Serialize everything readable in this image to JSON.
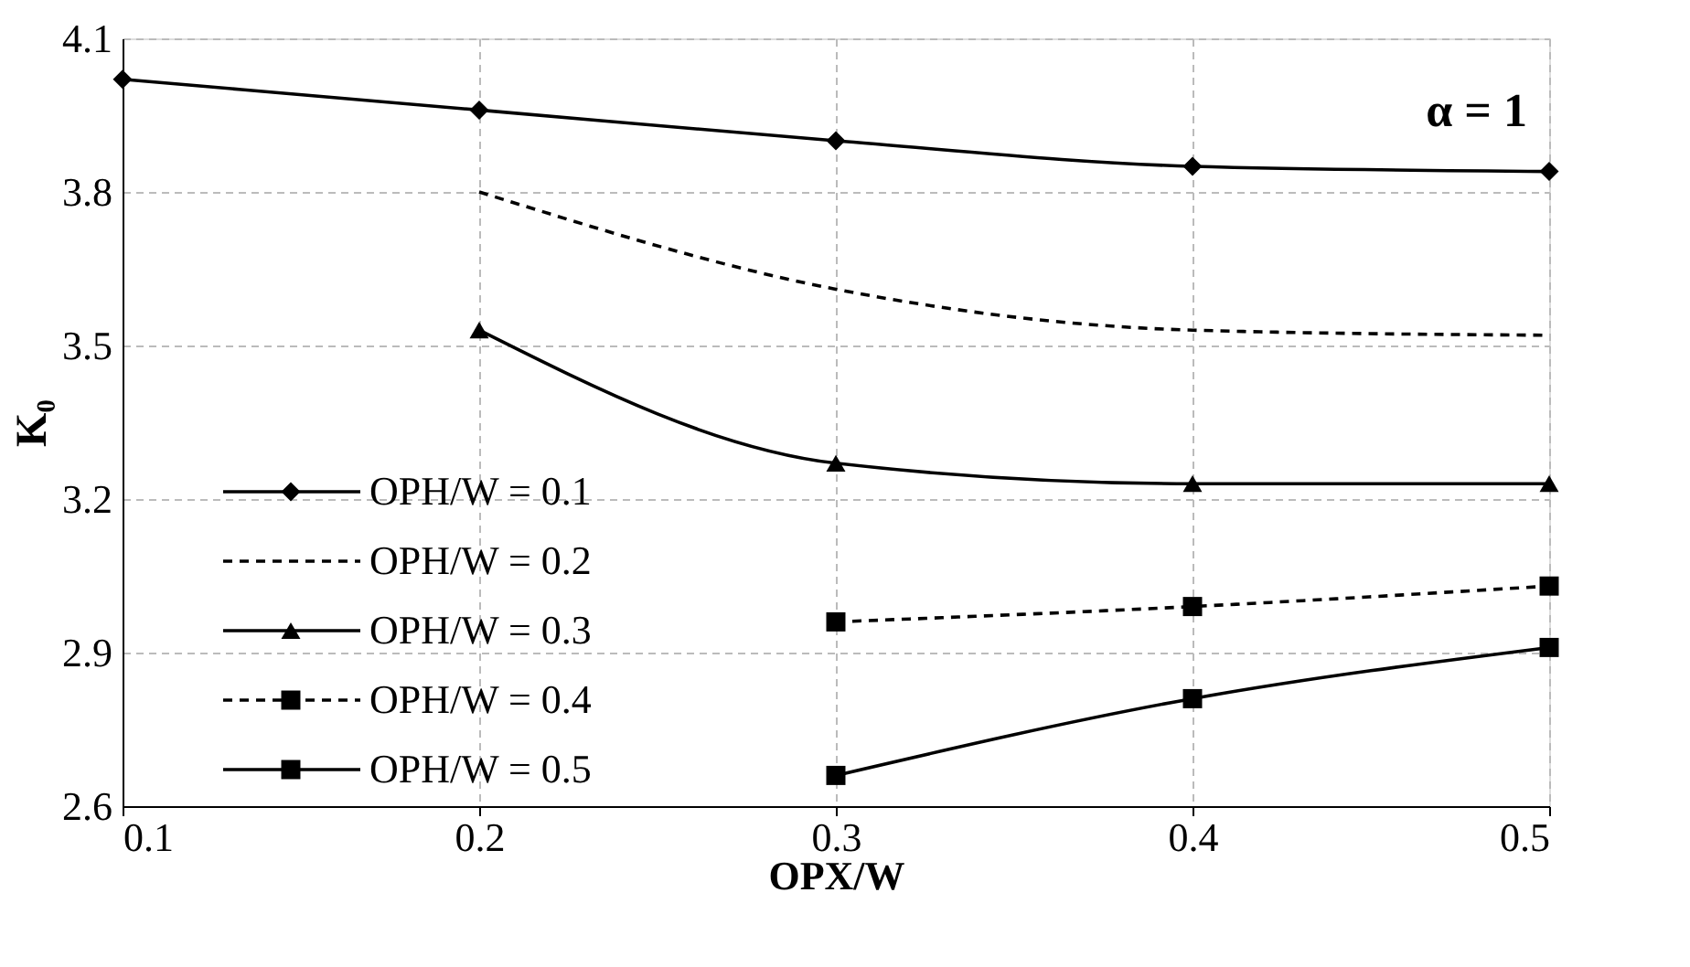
{
  "chart_data": {
    "type": "line",
    "xlabel": "OPX/W",
    "ylabel": "K₀",
    "annotations": [
      "α = 1"
    ],
    "xlim": [
      0.1,
      0.5
    ],
    "xticks": [
      0.1,
      0.2,
      0.3,
      0.4,
      0.5
    ],
    "ylim": [
      2.6,
      4.1
    ],
    "yticks": [
      2.6,
      2.9,
      3.2,
      3.5,
      3.8,
      4.1
    ],
    "grid": true,
    "legend": "bottom left",
    "series": [
      {
        "name": "OPH/W = 0.1",
        "color": "#000000",
        "marker": "diamond",
        "line_style": "solid",
        "x": [
          0.1,
          0.2,
          0.3,
          0.4,
          0.5
        ],
        "values": [
          4.02,
          3.96,
          3.9,
          3.85,
          3.84
        ]
      },
      {
        "name": "OPH/W = 0.2",
        "color": "#000000",
        "marker": "none",
        "line_style": "dashed",
        "x": [
          0.2,
          0.3,
          0.4,
          0.5
        ],
        "values": [
          3.8,
          3.61,
          3.53,
          3.52
        ]
      },
      {
        "name": "OPH/W = 0.3",
        "color": "#000000",
        "marker": "triangle",
        "line_style": "solid",
        "x": [
          0.2,
          0.3,
          0.4,
          0.5
        ],
        "values": [
          3.53,
          3.27,
          3.23,
          3.23
        ]
      },
      {
        "name": "OPH/W = 0.4",
        "color": "#000000",
        "marker": "square",
        "line_style": "dashed",
        "x": [
          0.3,
          0.4,
          0.5
        ],
        "values": [
          2.96,
          2.99,
          3.03
        ]
      },
      {
        "name": "OPH/W = 0.5",
        "color": "#000000",
        "marker": "square",
        "line_style": "solid",
        "x": [
          0.3,
          0.4,
          0.5
        ],
        "values": [
          2.66,
          2.81,
          2.91
        ]
      }
    ]
  }
}
